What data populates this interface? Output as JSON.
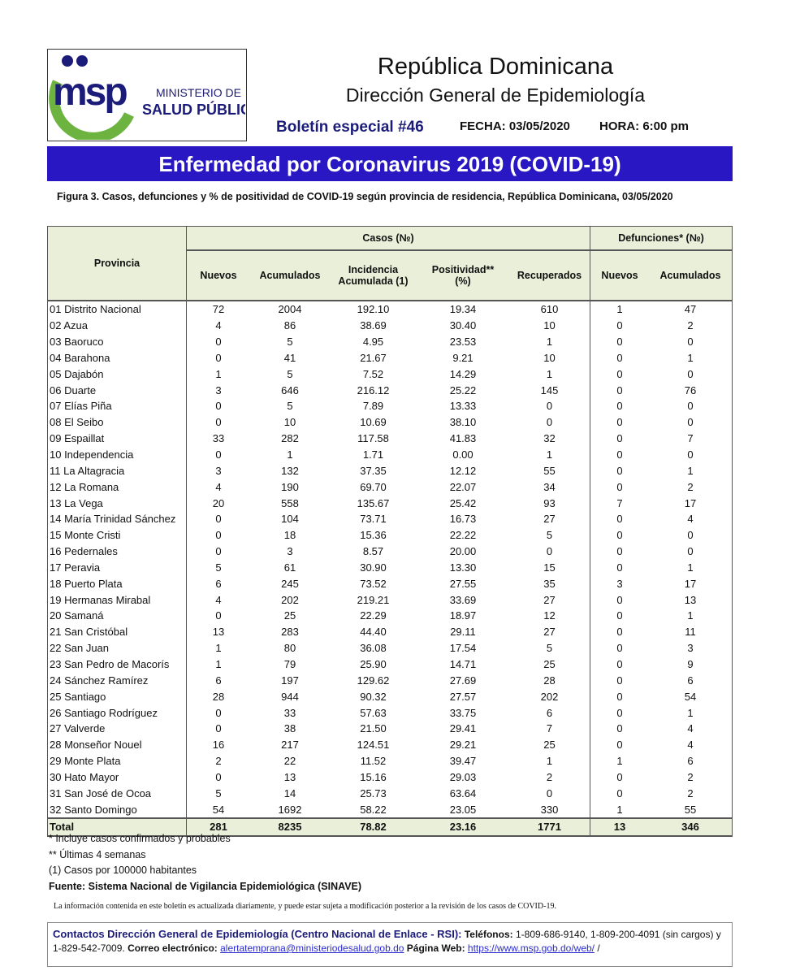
{
  "logo": {
    "mark": "msp",
    "line1": "MINISTERIO DE",
    "line2": "SALUD PÚBLICA"
  },
  "header": {
    "country": "República Dominicana",
    "department": "Dirección General de Epidemiología",
    "bulletin": "Boletín especial #46",
    "date": "FECHA: 03/05/2020",
    "time": "HORA: 6:00 pm"
  },
  "banner": "Enfermedad por Coronavirus 2019 (COVID-19)",
  "figure_caption": "Figura 3. Casos, defunciones y % de positividad de COVID-19 según provincia de residencia, República Dominicana, 03/05/2020",
  "table": {
    "headers": {
      "provincia": "Provincia",
      "casos": "Casos (№)",
      "defunciones": "Defunciones* (№)",
      "nuevos": "Nuevos",
      "acumulados": "Acumulados",
      "incidencia_l1": "Incidencia",
      "incidencia_l2": "Acumulada (1)",
      "positividad_l1": "Positividad**",
      "positividad_l2": "(%)",
      "recuperados": "Recuperados",
      "def_nuevos": "Nuevos",
      "def_acumulados": "Acumulados"
    },
    "rows": [
      [
        "01 Distrito Nacional",
        "72",
        "2004",
        "192.10",
        "19.34",
        "610",
        "1",
        "47"
      ],
      [
        "02 Azua",
        "4",
        "86",
        "38.69",
        "30.40",
        "10",
        "0",
        "2"
      ],
      [
        "03 Baoruco",
        "0",
        "5",
        "4.95",
        "23.53",
        "1",
        "0",
        "0"
      ],
      [
        "04 Barahona",
        "0",
        "41",
        "21.67",
        "9.21",
        "10",
        "0",
        "1"
      ],
      [
        "05 Dajabón",
        "1",
        "5",
        "7.52",
        "14.29",
        "1",
        "0",
        "0"
      ],
      [
        "06 Duarte",
        "3",
        "646",
        "216.12",
        "25.22",
        "145",
        "0",
        "76"
      ],
      [
        "07 Elías Piña",
        "0",
        "5",
        "7.89",
        "13.33",
        "0",
        "0",
        "0"
      ],
      [
        "08 El Seibo",
        "0",
        "10",
        "10.69",
        "38.10",
        "0",
        "0",
        "0"
      ],
      [
        "09 Espaillat",
        "33",
        "282",
        "117.58",
        "41.83",
        "32",
        "0",
        "7"
      ],
      [
        "10 Independencia",
        "0",
        "1",
        "1.71",
        "0.00",
        "1",
        "0",
        "0"
      ],
      [
        "11 La Altagracia",
        "3",
        "132",
        "37.35",
        "12.12",
        "55",
        "0",
        "1"
      ],
      [
        "12 La Romana",
        "4",
        "190",
        "69.70",
        "22.07",
        "34",
        "0",
        "2"
      ],
      [
        "13 La Vega",
        "20",
        "558",
        "135.67",
        "25.42",
        "93",
        "7",
        "17"
      ],
      [
        "14 María Trinidad Sánchez",
        "0",
        "104",
        "73.71",
        "16.73",
        "27",
        "0",
        "4"
      ],
      [
        "15 Monte Cristi",
        "0",
        "18",
        "15.36",
        "22.22",
        "5",
        "0",
        "0"
      ],
      [
        "16 Pedernales",
        "0",
        "3",
        "8.57",
        "20.00",
        "0",
        "0",
        "0"
      ],
      [
        "17 Peravia",
        "5",
        "61",
        "30.90",
        "13.30",
        "15",
        "0",
        "1"
      ],
      [
        "18 Puerto Plata",
        "6",
        "245",
        "73.52",
        "27.55",
        "35",
        "3",
        "17"
      ],
      [
        "19 Hermanas Mirabal",
        "4",
        "202",
        "219.21",
        "33.69",
        "27",
        "0",
        "13"
      ],
      [
        "20 Samaná",
        "0",
        "25",
        "22.29",
        "18.97",
        "12",
        "0",
        "1"
      ],
      [
        "21 San Cristóbal",
        "13",
        "283",
        "44.40",
        "29.11",
        "27",
        "0",
        "11"
      ],
      [
        "22 San Juan",
        "1",
        "80",
        "36.08",
        "17.54",
        "5",
        "0",
        "3"
      ],
      [
        "23 San Pedro de Macorís",
        "1",
        "79",
        "25.90",
        "14.71",
        "25",
        "0",
        "9"
      ],
      [
        "24 Sánchez Ramírez",
        "6",
        "197",
        "129.62",
        "27.69",
        "28",
        "0",
        "6"
      ],
      [
        "25 Santiago",
        "28",
        "944",
        "90.32",
        "27.57",
        "202",
        "0",
        "54"
      ],
      [
        "26 Santiago Rodríguez",
        "0",
        "33",
        "57.63",
        "33.75",
        "6",
        "0",
        "1"
      ],
      [
        "27 Valverde",
        "0",
        "38",
        "21.50",
        "29.41",
        "7",
        "0",
        "4"
      ],
      [
        "28 Monseñor Nouel",
        "16",
        "217",
        "124.51",
        "29.21",
        "25",
        "0",
        "4"
      ],
      [
        "29 Monte Plata",
        "2",
        "22",
        "11.52",
        "39.47",
        "1",
        "1",
        "6"
      ],
      [
        "30 Hato Mayor",
        "0",
        "13",
        "15.16",
        "29.03",
        "2",
        "0",
        "2"
      ],
      [
        "31 San José de Ocoa",
        "5",
        "14",
        "25.73",
        "63.64",
        "0",
        "0",
        "2"
      ],
      [
        "32 Santo Domingo",
        "54",
        "1692",
        "58.22",
        "23.05",
        "330",
        "1",
        "55"
      ]
    ],
    "total": [
      "Total",
      "281",
      "8235",
      "78.82",
      "23.16",
      "1771",
      "13",
      "346"
    ]
  },
  "notes": [
    "* Incluye casos confirmados y probables",
    "** Últimas 4 semanas",
    "(1) Casos por 100000 habitantes"
  ],
  "source": "Fuente: Sistema Nacional de Vigilancia Epidemiológica (SINAVE)",
  "disclaimer": "La información contenida en este boletín es actualizada diariamente, y puede estar sujeta a modificación posterior a la revisión de los casos de COVID-19.",
  "contact": {
    "lead": "Contactos Dirección General de Epidemiología (Centro Nacional de Enlace - RSI):",
    "phones_label": "Teléfonos:",
    "phones": "1-809-686-9140, 1-809-200-4091 (sin cargos) y 1-829-542-7009.",
    "email_label": "Correo electrónico:",
    "email": "alertatemprana@ministeriodesalud.gob.do",
    "web_label": "Página Web:",
    "web": "https://www.msp.gob.do/web/",
    "trailing": "/"
  },
  "colors": {
    "banner": "#2a17c4",
    "header_fill": "#e9efd9",
    "logo_blue": "#1b1b7a",
    "logo_green": "#6db33f"
  }
}
